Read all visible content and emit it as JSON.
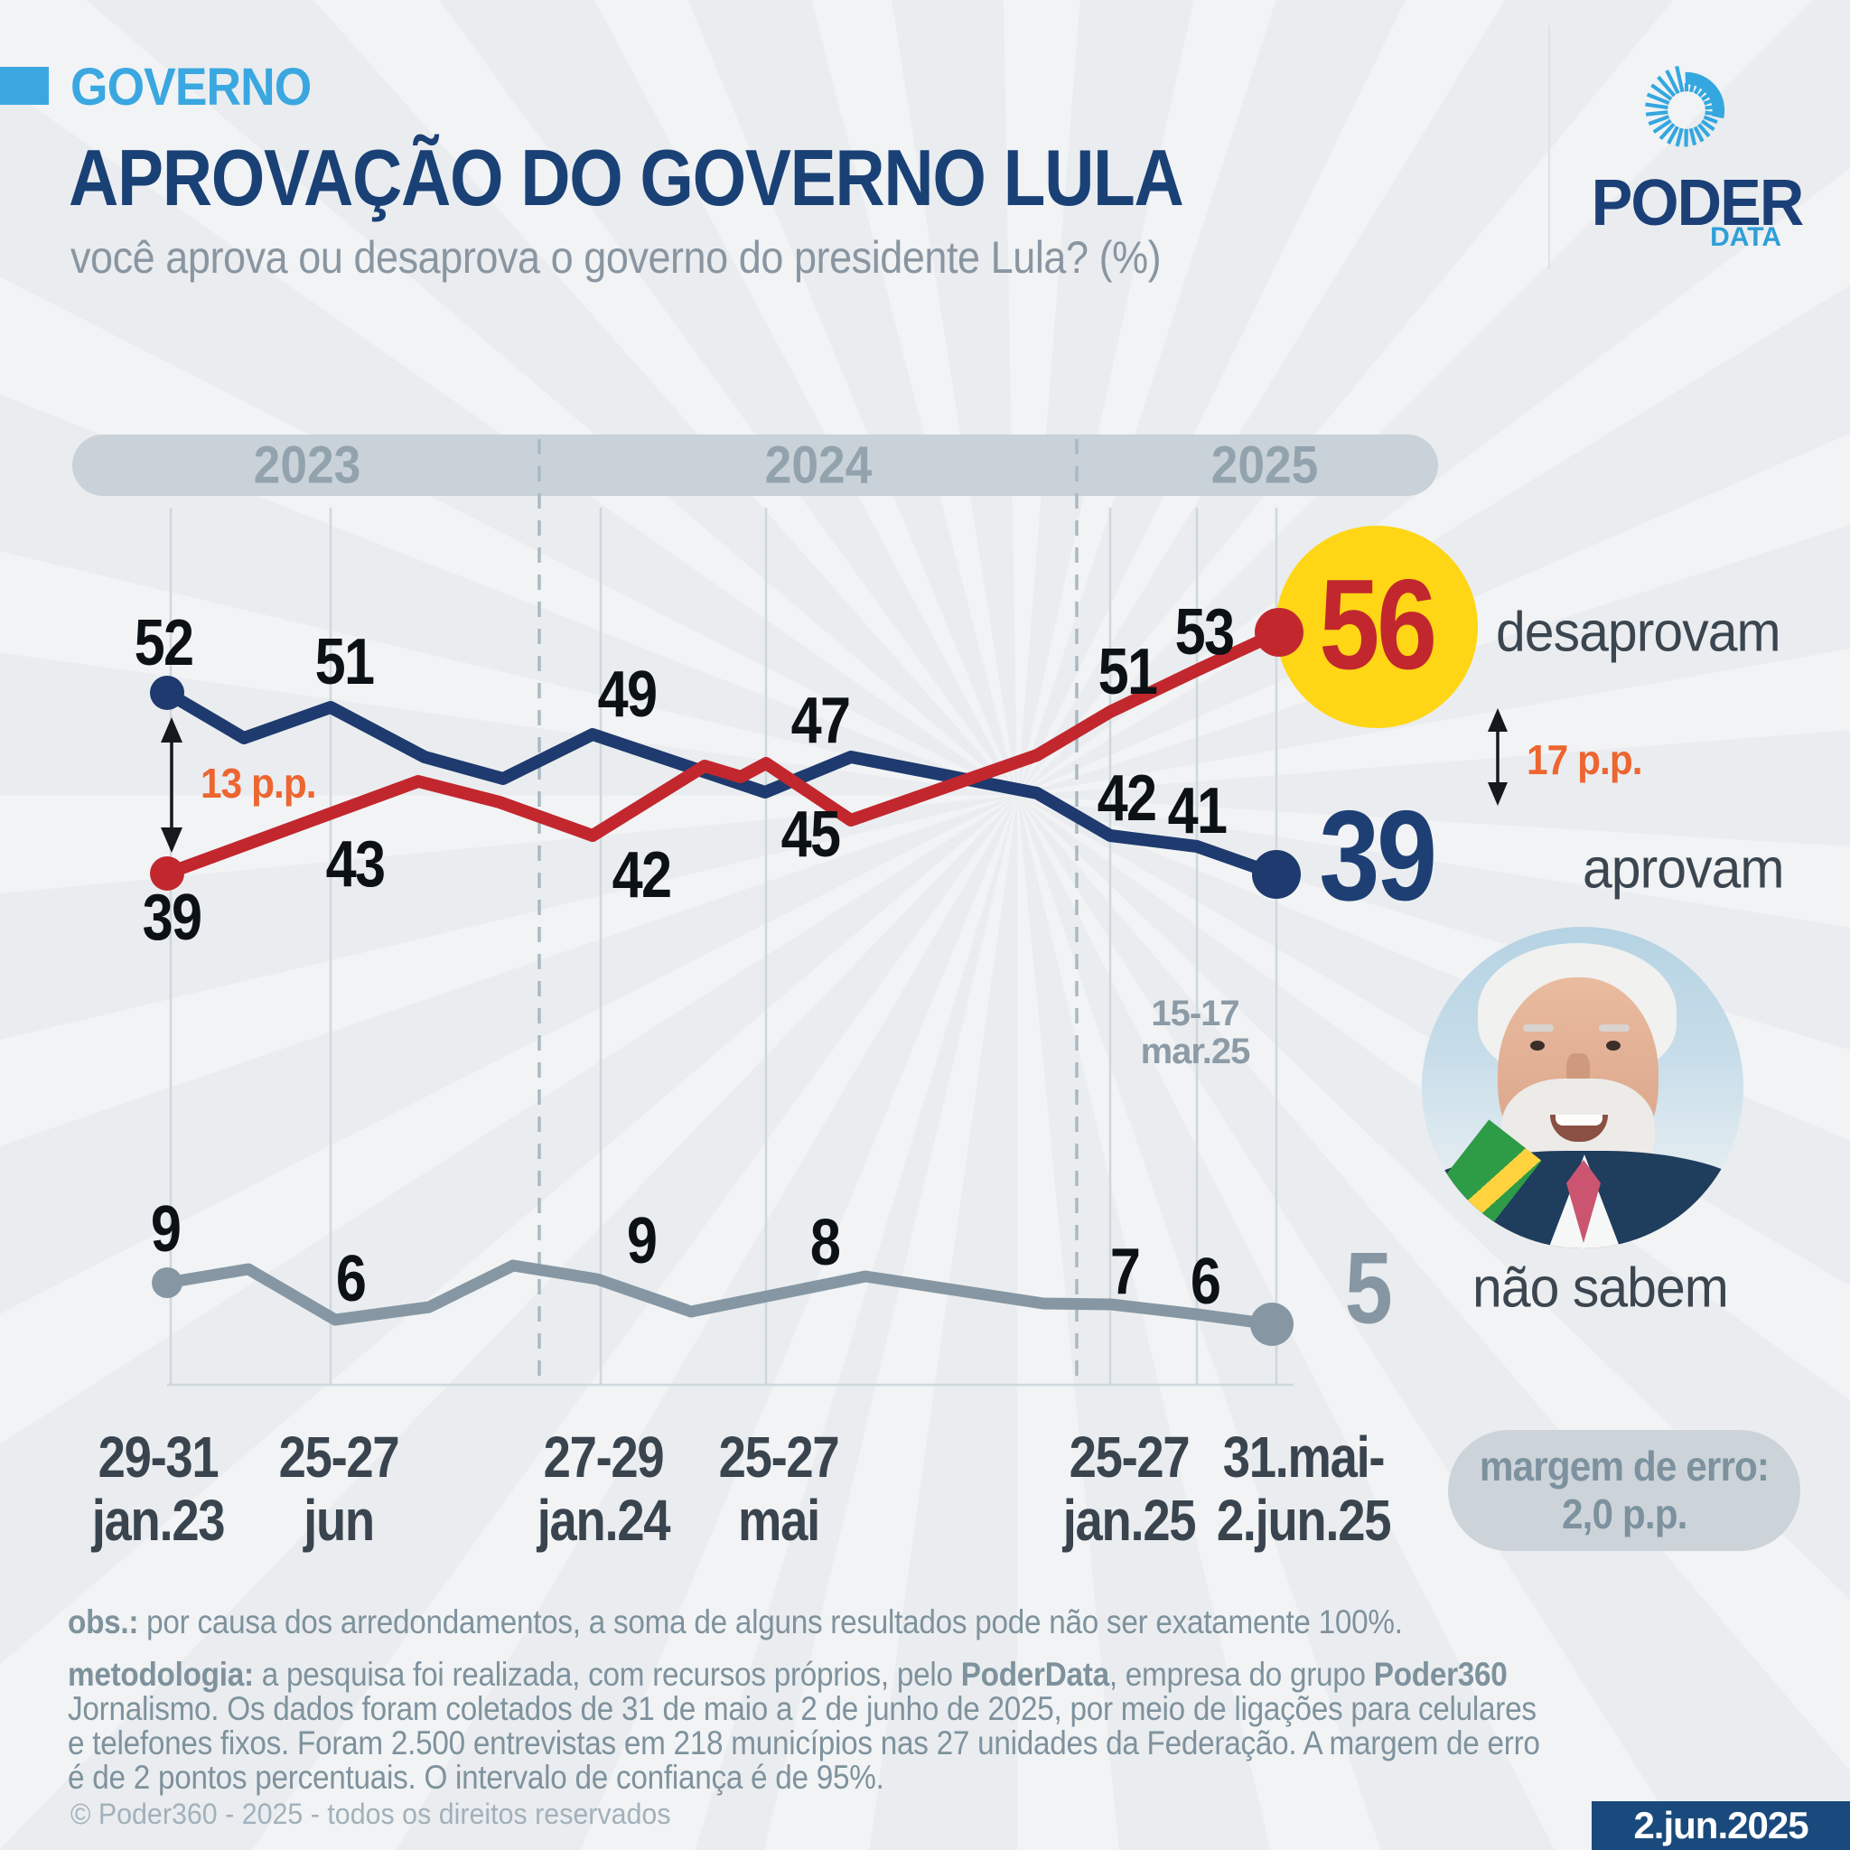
{
  "colors": {
    "background": "#edeff1",
    "accent_blue": "#3aa7e0",
    "title_navy": "#1a4176",
    "line_red": "#c2272e",
    "line_navy": "#1e3a6e",
    "line_gray": "#8697a3",
    "highlight_yellow": "#ffd616",
    "annotation_orange": "#ed6530",
    "slate_text": "#7e929d",
    "date_badge_bg": "#1a4a7d"
  },
  "header": {
    "kicker": "GOVERNO",
    "title": "APROVAÇÃO DO GOVERNO LULA",
    "subtitle": "você aprova ou desaprova o governo do presidente Lula? (%)"
  },
  "logo": {
    "icon": "sunburst-spiral-icon",
    "word": "PODER",
    "sub": "DATA"
  },
  "chart_data": {
    "type": "line",
    "title": "APROVAÇÃO DO GOVERNO LULA",
    "subtitle": "você aprova ou desaprova o governo do presidente Lula? (%)",
    "unit": "%",
    "years": [
      "2023",
      "2024",
      "2025"
    ],
    "categories": [
      "29-31 jan.23",
      "25-27 jun.23",
      "27-29 jan.24",
      "25-27 mai.24",
      "25-27 jan.25",
      "15-17 mar.25",
      "31.mai-2.jun.25"
    ],
    "series": [
      {
        "name": "desaprovam",
        "color": "#c2272e",
        "values": [
          39,
          43,
          42,
          45,
          51,
          53,
          56
        ]
      },
      {
        "name": "aprovam",
        "color": "#1e3a6e",
        "values": [
          52,
          51,
          49,
          47,
          42,
          41,
          39
        ]
      },
      {
        "name": "não sabem",
        "color": "#8697a3",
        "values": [
          9,
          6,
          9,
          8,
          7,
          6,
          5
        ]
      }
    ],
    "grid": "vertical lines at labeled survey waves",
    "legend_position": "right of last data points",
    "annotations": {
      "start_gap": "13 p.p.",
      "end_gap": "17 p.p.",
      "highlighted_value": "56",
      "inline_tick": [
        "15-17",
        "mar.25"
      ]
    },
    "x_axis_ticks": [
      [
        "29-31",
        "jan.23"
      ],
      [
        "25-27",
        "jun"
      ],
      [
        "27-29",
        "jan.24"
      ],
      [
        "25-27",
        "mai"
      ],
      [
        "25-27",
        "jan.25"
      ],
      [
        "31.mai-",
        "2.jun.25"
      ]
    ]
  },
  "notes": {
    "obs": [
      {
        "t": "obs.:",
        "b": true
      },
      {
        "t": " por causa dos arredondamentos, a soma de alguns resultados pode não ser exatamente 100%."
      }
    ],
    "metodologia": [
      [
        {
          "t": "metodologia:",
          "b": true
        },
        {
          "t": " a pesquisa foi realizada, com recursos próprios, pelo "
        },
        {
          "t": "PoderData",
          "b": true
        },
        {
          "t": ", empresa do grupo "
        },
        {
          "t": "Poder360",
          "b": true
        }
      ],
      [
        {
          "t": "Jornalismo. Os dados foram coletados de 31 de maio a 2 de junho de 2025, por meio de ligações para celulares"
        }
      ],
      [
        {
          "t": "e telefones fixos. Foram 2.500 entrevistas em 218 municípios nas 27 unidades da Federação. A margem de erro"
        }
      ],
      [
        {
          "t": "é de 2 pontos percentuais. O intervalo de confiança é de 95%."
        }
      ]
    ],
    "margin_badge": [
      "margem de erro:",
      "2,0 p.p."
    ],
    "footer": "© Poder360 - 2025 - todos os direitos reservados",
    "date_badge": "2.jun.2025"
  }
}
